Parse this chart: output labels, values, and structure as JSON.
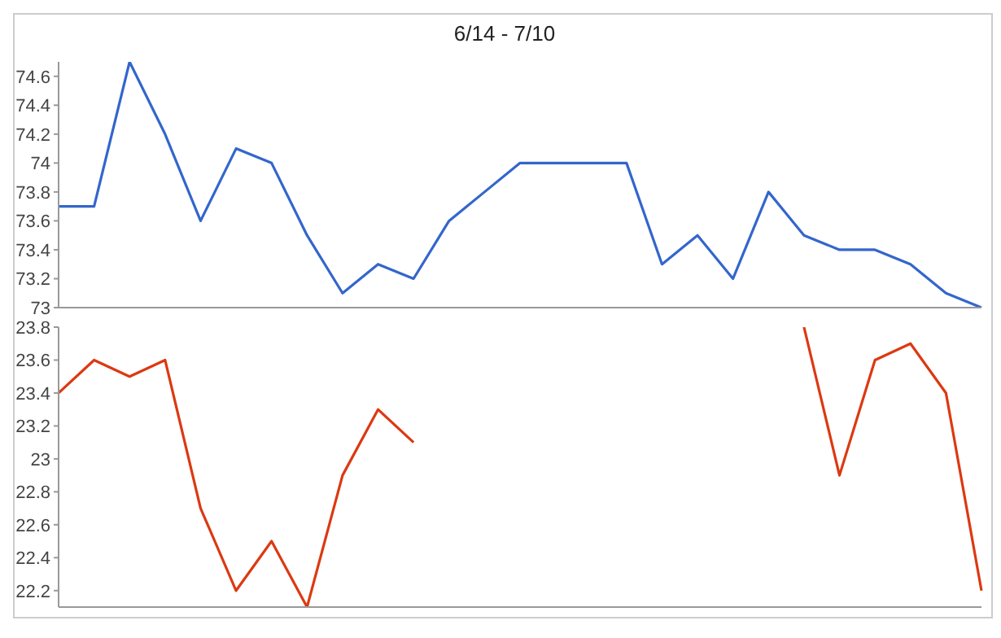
{
  "chart_data": [
    {
      "type": "line",
      "title": "6/14 - 7/10",
      "categories": [
        null,
        null,
        null,
        null,
        null,
        null,
        null,
        null,
        null,
        null,
        null,
        null,
        null,
        null,
        null,
        null,
        null,
        null,
        null,
        null,
        null,
        null,
        null,
        null,
        null,
        null,
        null
      ],
      "series": [
        {
          "color": "#3366cc",
          "values": [
            73.7,
            73.7,
            74.7,
            74.2,
            73.6,
            74.1,
            74.0,
            73.5,
            73.1,
            73.3,
            73.2,
            73.6,
            73.8,
            74.0,
            74.0,
            74.0,
            74.0,
            73.3,
            73.5,
            73.2,
            73.8,
            73.5,
            73.4,
            73.4,
            73.3,
            73.1,
            73.0
          ]
        }
      ],
      "ylim": [
        73,
        74.7
      ],
      "yticks": [
        73,
        73.2,
        73.4,
        73.6,
        73.8,
        74,
        74.2,
        74.4,
        74.6
      ],
      "tick_labels": "y",
      "grid": false,
      "legend": false
    },
    {
      "type": "line",
      "categories": [
        null,
        null,
        null,
        null,
        null,
        null,
        null,
        null,
        null,
        null,
        null,
        null,
        null,
        null,
        null,
        null,
        null,
        null,
        null,
        null,
        null,
        null,
        null,
        null,
        null,
        null,
        null
      ],
      "series": [
        {
          "color": "#dc3912",
          "values": [
            23.4,
            23.6,
            23.5,
            23.6,
            22.7,
            22.2,
            22.5,
            22.1,
            22.9,
            23.3,
            23.1,
            null,
            null,
            null,
            null,
            null,
            null,
            null,
            null,
            null,
            null,
            23.8,
            22.9,
            23.6,
            23.7,
            23.4,
            22.2
          ]
        }
      ],
      "ylim": [
        22.1,
        23.8
      ],
      "yticks": [
        22.2,
        22.4,
        22.6,
        22.8,
        23,
        23.2,
        23.4,
        23.6,
        23.8
      ],
      "tick_labels": "y",
      "grid": false,
      "legend": false
    }
  ]
}
